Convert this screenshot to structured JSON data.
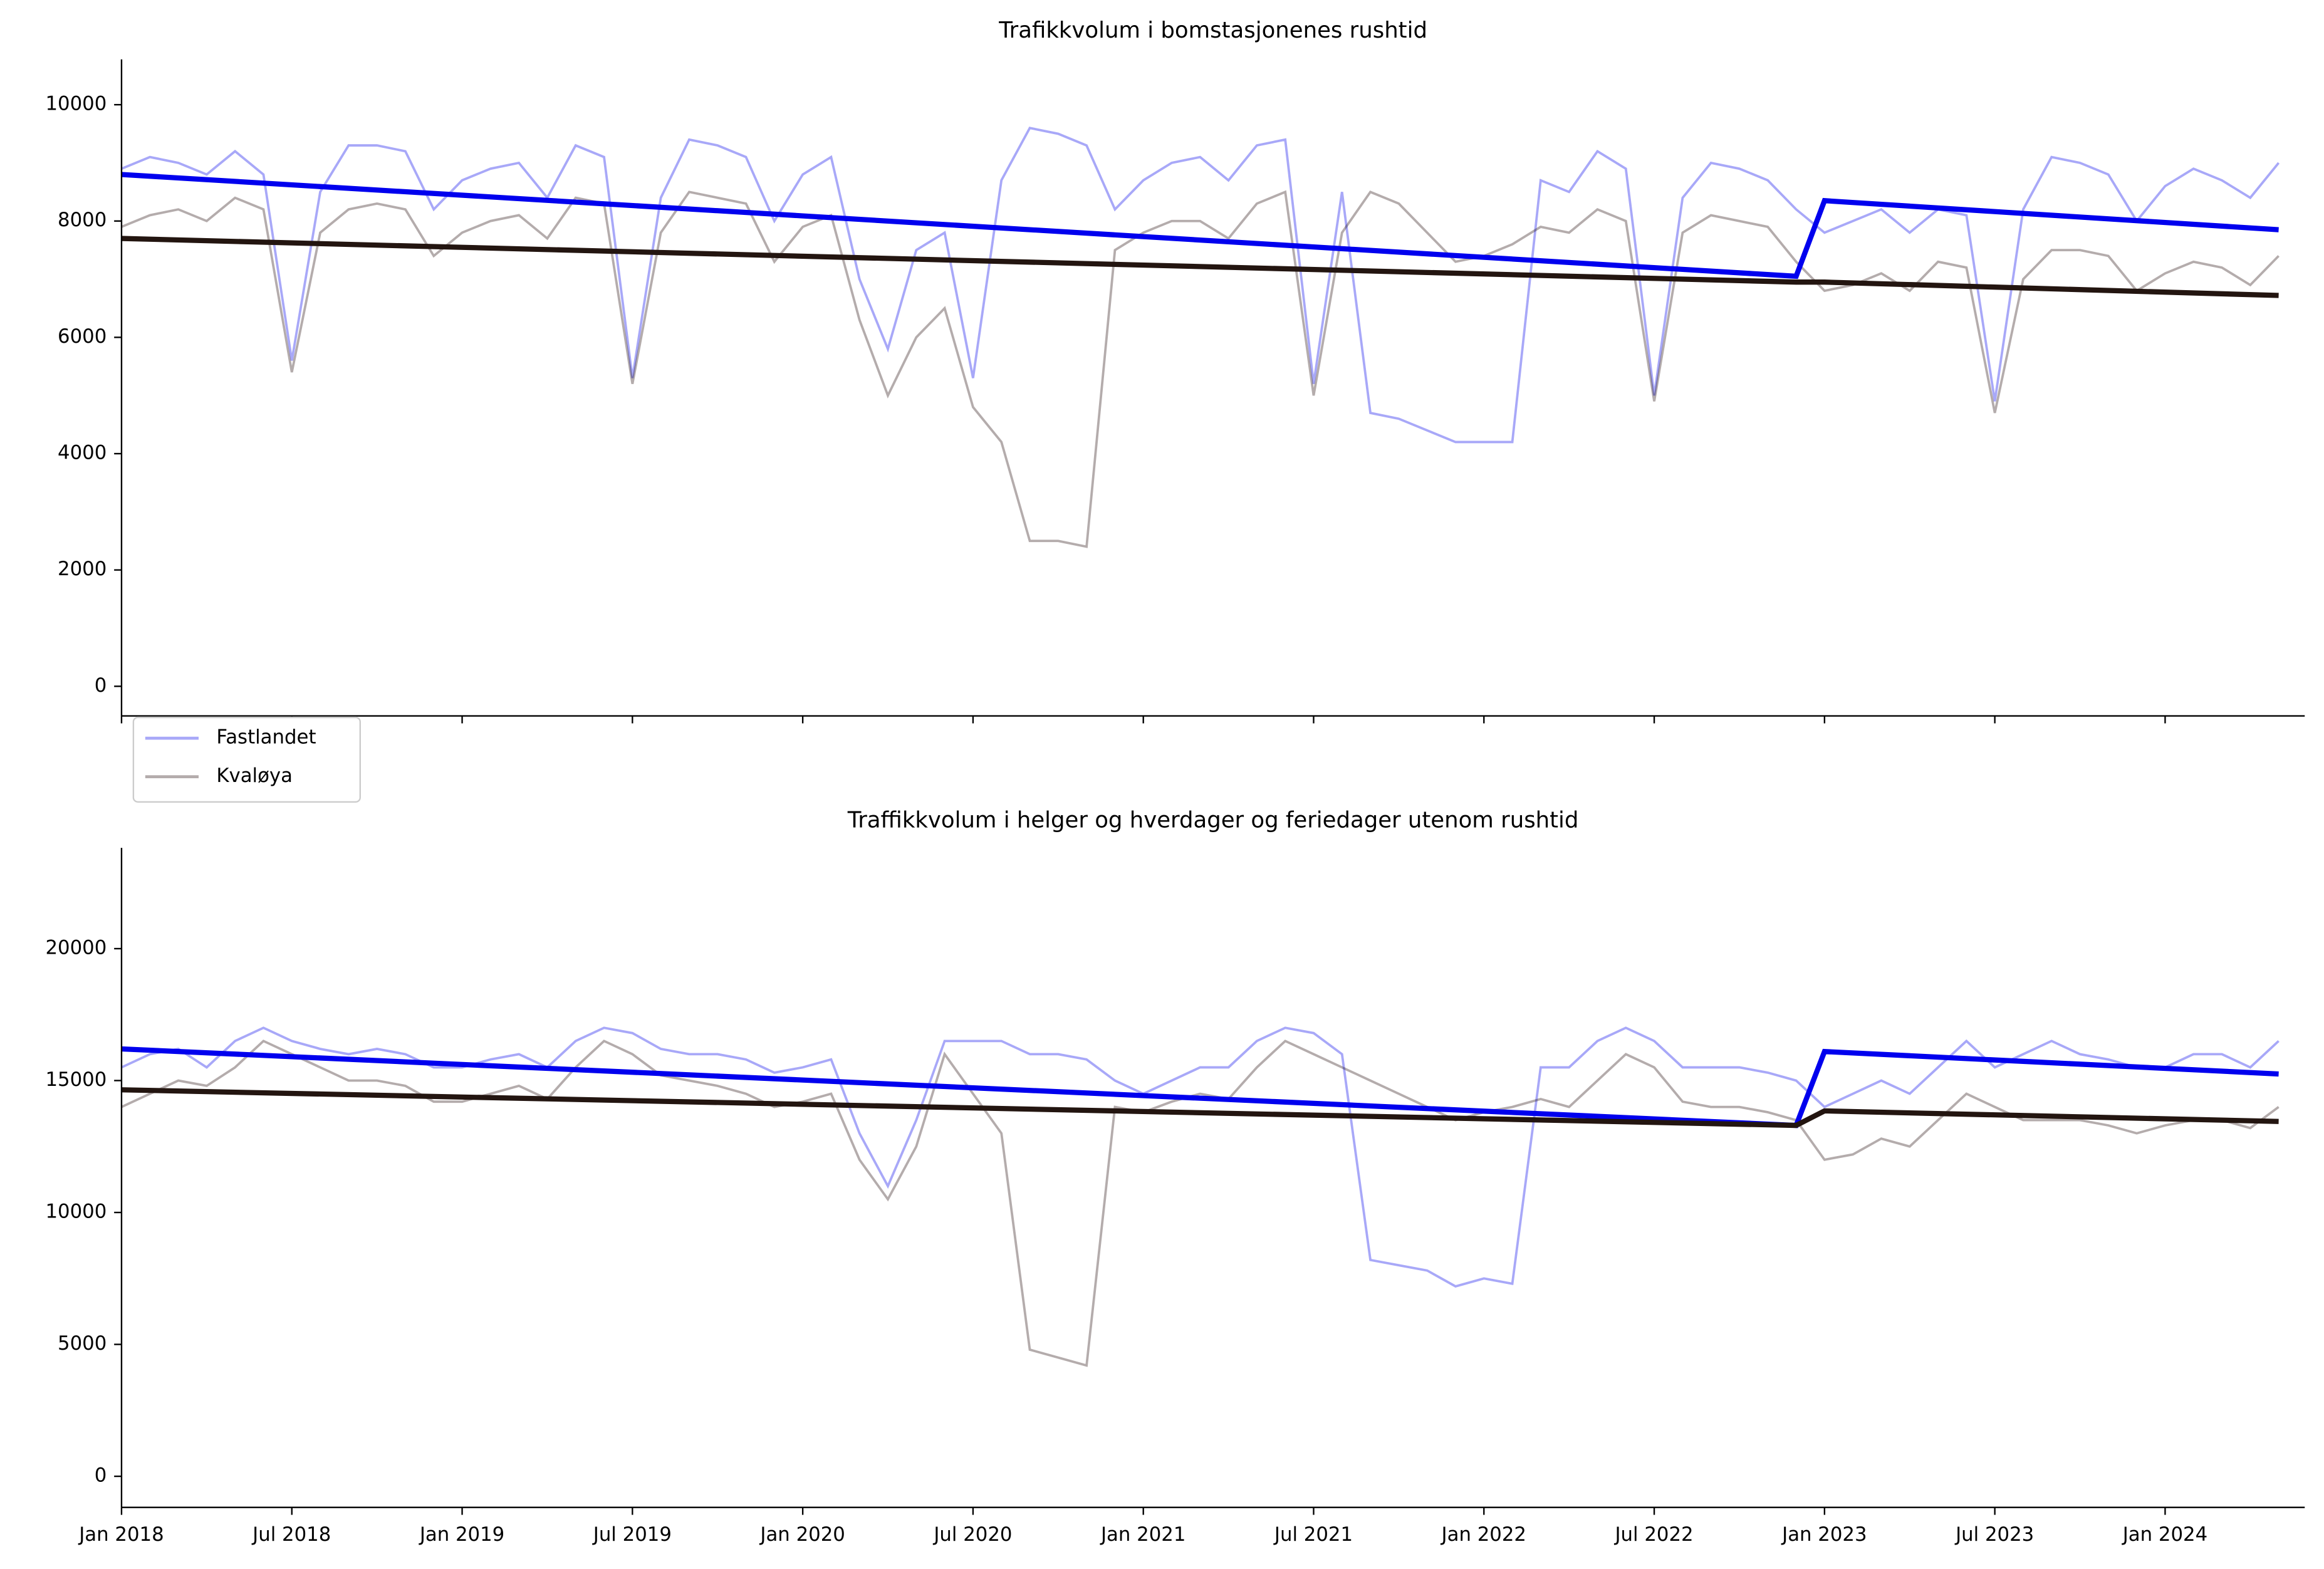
{
  "chart_data": [
    {
      "type": "line",
      "title": "Trafikkvolum i bomstasjonenes rushtid",
      "x": [
        "Jan 2018",
        "Feb 2018",
        "Mar 2018",
        "Apr 2018",
        "May 2018",
        "Jun 2018",
        "Jul 2018",
        "Aug 2018",
        "Sep 2018",
        "Oct 2018",
        "Nov 2018",
        "Dec 2018",
        "Jan 2019",
        "Feb 2019",
        "Mar 2019",
        "Apr 2019",
        "May 2019",
        "Jun 2019",
        "Jul 2019",
        "Aug 2019",
        "Sep 2019",
        "Oct 2019",
        "Nov 2019",
        "Dec 2019",
        "Jan 2020",
        "Feb 2020",
        "Mar 2020",
        "Apr 2020",
        "May 2020",
        "Jun 2020",
        "Jul 2020",
        "Aug 2020",
        "Sep 2020",
        "Oct 2020",
        "Nov 2020",
        "Dec 2020",
        "Jan 2021",
        "Feb 2021",
        "Mar 2021",
        "Apr 2021",
        "May 2021",
        "Jun 2021",
        "Jul 2021",
        "Aug 2021",
        "Sep 2021",
        "Oct 2021",
        "Nov 2021",
        "Dec 2021",
        "Jan 2022",
        "Feb 2022",
        "Mar 2022",
        "Apr 2022",
        "May 2022",
        "Jun 2022",
        "Jul 2022",
        "Aug 2022",
        "Sep 2022",
        "Oct 2022",
        "Nov 2022",
        "Dec 2022",
        "Jan 2023",
        "Feb 2023",
        "Mar 2023",
        "Apr 2023",
        "May 2023",
        "Jun 2023",
        "Jul 2023",
        "Aug 2023",
        "Sep 2023",
        "Oct 2023",
        "Nov 2023",
        "Dec 2023",
        "Jan 2024",
        "Feb 2024",
        "Mar 2024",
        "Apr 2024",
        "May 2024"
      ],
      "ylim": [
        -510,
        10780
      ],
      "yticks": [
        0,
        2000,
        4000,
        6000,
        8000,
        10000
      ],
      "legend": "lower left",
      "series": [
        {
          "name": "Fastlandet",
          "color": "#a8a8f8",
          "values": [
            8900,
            9100,
            9000,
            8800,
            9200,
            8800,
            5600,
            8500,
            9300,
            9300,
            9200,
            8200,
            8700,
            8900,
            9000,
            8400,
            9300,
            9100,
            5300,
            8400,
            9400,
            9300,
            9100,
            8000,
            8800,
            9100,
            7000,
            5800,
            7500,
            7800,
            5300,
            8700,
            9600,
            9500,
            9300,
            8200,
            8700,
            9000,
            9100,
            8700,
            9300,
            9400,
            5200,
            8500,
            4700,
            4600,
            4400,
            4200,
            4200,
            4200,
            8700,
            8500,
            9200,
            8900,
            5000,
            8400,
            9000,
            8900,
            8700,
            8200,
            7800,
            8000,
            8200,
            7800,
            8200,
            8100,
            4900,
            8200,
            9100,
            9000,
            8800,
            8000,
            8600,
            8900,
            8700,
            8400,
            9000
          ],
          "trend": {
            "color": "#0000ee",
            "x": [
              "Jan 2018",
              "Dec 2022",
              "Jan 2023",
              "May 2024"
            ],
            "values": [
              8800,
              7050,
              8350,
              7850
            ]
          }
        },
        {
          "name": "Kvaløya",
          "color": "#b4acac",
          "values": [
            7900,
            8100,
            8200,
            8000,
            8400,
            8200,
            5400,
            7800,
            8200,
            8300,
            8200,
            7400,
            7800,
            8000,
            8100,
            7700,
            8400,
            8300,
            5200,
            7800,
            8500,
            8400,
            8300,
            7300,
            7900,
            8100,
            6300,
            5000,
            6000,
            6500,
            4800,
            4200,
            2500,
            2500,
            2400,
            7500,
            7800,
            8000,
            8000,
            7700,
            8300,
            8500,
            5000,
            7800,
            8500,
            8300,
            7800,
            7300,
            7400,
            7600,
            7900,
            7800,
            8200,
            8000,
            4900,
            7800,
            8100,
            8000,
            7900,
            7300,
            6800,
            6900,
            7100,
            6800,
            7300,
            7200,
            4700,
            7000,
            7500,
            7500,
            7400,
            6800,
            7100,
            7300,
            7200,
            6900,
            7400
          ],
          "trend": {
            "color": "#231510",
            "x": [
              "Jan 2018",
              "Dec 2022",
              "Jan 2023",
              "May 2024"
            ],
            "values": [
              7700,
              6950,
              6950,
              6720
            ]
          }
        }
      ]
    },
    {
      "type": "line",
      "title": "Traffikkvolum i helger og hverdager og feriedager utenom rushtid",
      "x": [
        "Jan 2018",
        "Feb 2018",
        "Mar 2018",
        "Apr 2018",
        "May 2018",
        "Jun 2018",
        "Jul 2018",
        "Aug 2018",
        "Sep 2018",
        "Oct 2018",
        "Nov 2018",
        "Dec 2018",
        "Jan 2019",
        "Feb 2019",
        "Mar 2019",
        "Apr 2019",
        "May 2019",
        "Jun 2019",
        "Jul 2019",
        "Aug 2019",
        "Sep 2019",
        "Oct 2019",
        "Nov 2019",
        "Dec 2019",
        "Jan 2020",
        "Feb 2020",
        "Mar 2020",
        "Apr 2020",
        "May 2020",
        "Jun 2020",
        "Jul 2020",
        "Aug 2020",
        "Sep 2020",
        "Oct 2020",
        "Nov 2020",
        "Dec 2020",
        "Jan 2021",
        "Feb 2021",
        "Mar 2021",
        "Apr 2021",
        "May 2021",
        "Jun 2021",
        "Jul 2021",
        "Aug 2021",
        "Sep 2021",
        "Oct 2021",
        "Nov 2021",
        "Dec 2021",
        "Jan 2022",
        "Feb 2022",
        "Mar 2022",
        "Apr 2022",
        "May 2022",
        "Jun 2022",
        "Jul 2022",
        "Aug 2022",
        "Sep 2022",
        "Oct 2022",
        "Nov 2022",
        "Dec 2022",
        "Jan 2023",
        "Feb 2023",
        "Mar 2023",
        "Apr 2023",
        "May 2023",
        "Jun 2023",
        "Jul 2023",
        "Aug 2023",
        "Sep 2023",
        "Oct 2023",
        "Nov 2023",
        "Dec 2023",
        "Jan 2024",
        "Feb 2024",
        "Mar 2024",
        "Apr 2024",
        "May 2024"
      ],
      "ylim": [
        -1180,
        23820
      ],
      "yticks": [
        0,
        5000,
        10000,
        15000,
        20000
      ],
      "xticks": [
        "Jan 2018",
        "Jul 2018",
        "Jan 2019",
        "Jul 2019",
        "Jan 2020",
        "Jul 2020",
        "Jan 2021",
        "Jul 2021",
        "Jan 2022",
        "Jul 2022",
        "Jan 2023",
        "Jul 2023",
        "Jan 2024"
      ],
      "series": [
        {
          "name": "Fastlandet",
          "color": "#a8a8f8",
          "values": [
            15500,
            16000,
            16200,
            15500,
            16500,
            17000,
            16500,
            16200,
            16000,
            16200,
            16000,
            15500,
            15500,
            15800,
            16000,
            15500,
            16500,
            17000,
            16800,
            16200,
            16000,
            16000,
            15800,
            15300,
            15500,
            15800,
            13000,
            11000,
            13500,
            16500,
            16500,
            16500,
            16000,
            16000,
            15800,
            15000,
            14500,
            15000,
            15500,
            15500,
            16500,
            17000,
            16800,
            16000,
            8200,
            8000,
            7800,
            7200,
            7500,
            7300,
            15500,
            15500,
            16500,
            17000,
            16500,
            15500,
            15500,
            15500,
            15300,
            15000,
            14000,
            14500,
            15000,
            14500,
            15500,
            16500,
            15500,
            16000,
            16500,
            16000,
            15800,
            15500,
            15500,
            16000,
            16000,
            15500,
            16500
          ],
          "trend": {
            "color": "#0000ee",
            "x": [
              "Jan 2018",
              "Dec 2022",
              "Jan 2023",
              "May 2024"
            ],
            "values": [
              16200,
              13300,
              16100,
              15250
            ]
          }
        },
        {
          "name": "Kvaløya",
          "color": "#b4acac",
          "values": [
            14000,
            14500,
            15000,
            14800,
            15500,
            16500,
            16000,
            15500,
            15000,
            15000,
            14800,
            14200,
            14200,
            14500,
            14800,
            14300,
            15500,
            16500,
            16000,
            15200,
            15000,
            14800,
            14500,
            14000,
            14200,
            14500,
            12000,
            10500,
            12500,
            16000,
            14500,
            13000,
            4800,
            4500,
            4200,
            14000,
            13800,
            14200,
            14500,
            14300,
            15500,
            16500,
            16000,
            15500,
            15000,
            14500,
            14000,
            13500,
            13800,
            14000,
            14300,
            14000,
            15000,
            16000,
            15500,
            14200,
            14000,
            14000,
            13800,
            13500,
            12000,
            12200,
            12800,
            12500,
            13500,
            14500,
            14000,
            13500,
            13500,
            13500,
            13300,
            13000,
            13300,
            13500,
            13500,
            13200,
            14000
          ],
          "trend": {
            "color": "#231510",
            "x": [
              "Jan 2018",
              "Dec 2022",
              "Jan 2023",
              "May 2024"
            ],
            "values": [
              14650,
              13300,
              13850,
              13450
            ]
          }
        }
      ]
    }
  ]
}
